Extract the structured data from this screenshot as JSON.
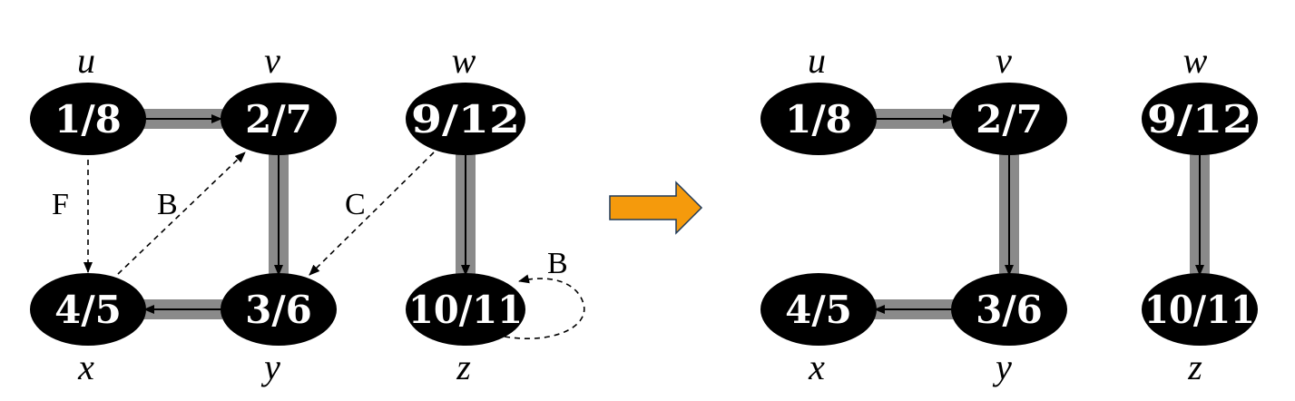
{
  "colors": {
    "tree_edge_band": "#8a8a8a",
    "node_fill": "#000000",
    "node_text": "#ffffff",
    "arrow_fill": "#f59a0c",
    "arrow_stroke": "#1f3a5a"
  },
  "left_graph": {
    "vertices": {
      "u": {
        "name": "u",
        "label": "1/8"
      },
      "v": {
        "name": "v",
        "label": "2/7"
      },
      "w": {
        "name": "w",
        "label": "9/12"
      },
      "x": {
        "name": "x",
        "label": "4/5"
      },
      "y": {
        "name": "y",
        "label": "3/6"
      },
      "z": {
        "name": "z",
        "label": "10/11"
      }
    },
    "edge_labels": {
      "u_x": "F",
      "x_v": "B",
      "w_y": "C",
      "z_z": "B"
    }
  },
  "right_graph": {
    "vertices": {
      "u": {
        "name": "u",
        "label": "1/8"
      },
      "v": {
        "name": "v",
        "label": "2/7"
      },
      "w": {
        "name": "w",
        "label": "9/12"
      },
      "x": {
        "name": "x",
        "label": "4/5"
      },
      "y": {
        "name": "y",
        "label": "3/6"
      },
      "z": {
        "name": "z",
        "label": "10/11"
      }
    }
  },
  "transition_arrow_icon": "right-arrow-icon"
}
